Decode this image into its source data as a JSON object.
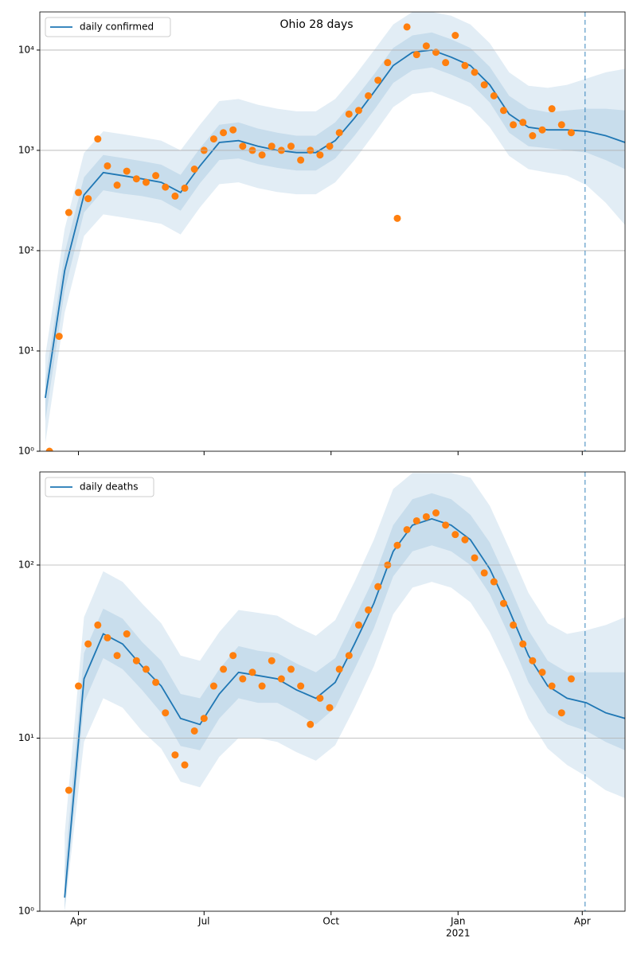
{
  "chart_data": [
    {
      "type": "line",
      "title": "Ohio 28 days",
      "log_scale": true,
      "grid": true,
      "legend": "upper left",
      "xlim": [
        "2020-03-04",
        "2021-05-02"
      ],
      "xticks": [
        "2020-04-01",
        "2020-07-01",
        "2020-10-01",
        "2021-01-01",
        "2021-04-01"
      ],
      "ylim": [
        1,
        24000
      ],
      "yticks": [
        {
          "value": 1,
          "label": "10⁰"
        },
        {
          "value": 10,
          "label": "10¹"
        },
        {
          "value": 100,
          "label": "10²"
        },
        {
          "value": 1000,
          "label": "10³"
        },
        {
          "value": 10000,
          "label": "10⁴"
        }
      ],
      "vline": {
        "x": "2021-04-03",
        "color": "#1f77b4"
      },
      "x": [
        "2020-03-08",
        "2020-03-22",
        "2020-04-05",
        "2020-04-19",
        "2020-05-03",
        "2020-05-17",
        "2020-05-31",
        "2020-06-14",
        "2020-06-28",
        "2020-07-12",
        "2020-07-26",
        "2020-08-09",
        "2020-08-23",
        "2020-09-06",
        "2020-09-20",
        "2020-10-04",
        "2020-10-18",
        "2020-11-01",
        "2020-11-15",
        "2020-11-29",
        "2020-12-13",
        "2020-12-27",
        "2021-01-10",
        "2021-01-24",
        "2021-02-07",
        "2021-02-21",
        "2021-03-07",
        "2021-03-21",
        "2021-04-04",
        "2021-04-18",
        "2021-05-02"
      ],
      "series": [
        {
          "name": "daily confirmed",
          "color": "#1f77b4",
          "values": [
            3.4,
            63,
            360,
            600,
            560,
            520,
            480,
            380,
            700,
            1200,
            1250,
            1100,
            1000,
            950,
            950,
            1250,
            2100,
            3800,
            7000,
            9500,
            10000,
            8500,
            7000,
            4500,
            2300,
            1700,
            1600,
            1600,
            1550,
            1400,
            1200
          ]
        }
      ],
      "bands": [
        {
          "color": "#1f77b4",
          "lower": [
            1.2,
            24,
            140,
            230,
            215,
            200,
            185,
            145,
            270,
            460,
            480,
            420,
            385,
            365,
            365,
            480,
            800,
            1450,
            2700,
            3650,
            3850,
            3250,
            2700,
            1700,
            880,
            650,
            600,
            560,
            450,
            300,
            180
          ],
          "upper": [
            9,
            165,
            940,
            1550,
            1450,
            1350,
            1250,
            1000,
            1800,
            3100,
            3250,
            2850,
            2600,
            2450,
            2450,
            3250,
            5500,
            9900,
            18000,
            24000,
            24000,
            22000,
            18000,
            11700,
            6000,
            4400,
            4200,
            4500,
            5200,
            6000,
            6500
          ]
        },
        {
          "color": "#1f77b4",
          "lower": [
            2,
            40,
            240,
            400,
            370,
            350,
            320,
            250,
            470,
            800,
            830,
            730,
            670,
            630,
            630,
            830,
            1400,
            2500,
            4700,
            6300,
            6700,
            5700,
            4700,
            3000,
            1500,
            1100,
            1050,
            1000,
            950,
            800,
            650
          ],
          "upper": [
            5,
            95,
            540,
            900,
            840,
            780,
            720,
            570,
            1050,
            1800,
            1900,
            1650,
            1500,
            1400,
            1400,
            1900,
            3200,
            5700,
            10500,
            14000,
            15000,
            12800,
            10500,
            6800,
            3500,
            2600,
            2400,
            2500,
            2600,
            2600,
            2500
          ]
        }
      ],
      "scatter": {
        "color": "#ff7f0e",
        "x": [
          "2020-03-11",
          "2020-03-18",
          "2020-03-25",
          "2020-04-01",
          "2020-04-08",
          "2020-04-15",
          "2020-04-22",
          "2020-04-29",
          "2020-05-06",
          "2020-05-13",
          "2020-05-20",
          "2020-05-27",
          "2020-06-03",
          "2020-06-10",
          "2020-06-17",
          "2020-06-24",
          "2020-07-01",
          "2020-07-08",
          "2020-07-15",
          "2020-07-22",
          "2020-07-29",
          "2020-08-05",
          "2020-08-12",
          "2020-08-19",
          "2020-08-26",
          "2020-09-02",
          "2020-09-09",
          "2020-09-16",
          "2020-09-23",
          "2020-09-30",
          "2020-10-07",
          "2020-10-14",
          "2020-10-21",
          "2020-10-28",
          "2020-11-04",
          "2020-11-11",
          "2020-11-18",
          "2020-11-25",
          "2020-12-02",
          "2020-12-09",
          "2020-12-16",
          "2020-12-23",
          "2020-12-30",
          "2021-01-06",
          "2021-01-13",
          "2021-01-20",
          "2021-01-27",
          "2021-02-03",
          "2021-02-10",
          "2021-02-17",
          "2021-02-24",
          "2021-03-03",
          "2021-03-10",
          "2021-03-17",
          "2021-03-24"
        ],
        "values": [
          1,
          14,
          240,
          380,
          330,
          1300,
          700,
          450,
          620,
          520,
          480,
          560,
          430,
          350,
          420,
          650,
          1000,
          1300,
          1500,
          1600,
          1100,
          1000,
          900,
          1100,
          1000,
          1100,
          800,
          1000,
          900,
          1100,
          1500,
          2300,
          2500,
          3500,
          5000,
          7500,
          210,
          17000,
          9000,
          11000,
          9500,
          7500,
          14000,
          7000,
          6000,
          4500,
          3500,
          2500,
          1800,
          1900,
          1400,
          1600,
          2600,
          1800,
          1500
        ]
      }
    },
    {
      "type": "line",
      "log_scale": true,
      "grid": true,
      "legend": "upper left",
      "xlim": [
        "2020-03-04",
        "2021-05-02"
      ],
      "xticks": [
        {
          "value": "2020-04-01",
          "label": "Apr"
        },
        {
          "value": "2020-07-01",
          "label": "Jul"
        },
        {
          "value": "2020-10-01",
          "label": "Oct"
        },
        {
          "value": "2021-01-01",
          "label": "Jan",
          "sublabel": "2021"
        },
        {
          "value": "2021-04-01",
          "label": "Apr"
        }
      ],
      "ylim": [
        1,
        345
      ],
      "yticks": [
        {
          "value": 1,
          "label": "10⁰"
        },
        {
          "value": 10,
          "label": "10¹"
        },
        {
          "value": 100,
          "label": "10²"
        }
      ],
      "vline": {
        "x": "2021-04-03",
        "color": "#1f77b4"
      },
      "x": [
        "2020-03-08",
        "2020-03-22",
        "2020-04-05",
        "2020-04-19",
        "2020-05-03",
        "2020-05-17",
        "2020-05-31",
        "2020-06-14",
        "2020-06-28",
        "2020-07-12",
        "2020-07-26",
        "2020-08-09",
        "2020-08-23",
        "2020-09-06",
        "2020-09-20",
        "2020-10-04",
        "2020-10-18",
        "2020-11-01",
        "2020-11-15",
        "2020-11-29",
        "2020-12-13",
        "2020-12-27",
        "2021-01-10",
        "2021-01-24",
        "2021-02-07",
        "2021-02-21",
        "2021-03-07",
        "2021-03-21",
        "2021-04-04",
        "2021-04-18",
        "2021-05-02"
      ],
      "series": [
        {
          "name": "daily deaths",
          "color": "#1f77b4",
          "values": [
            null,
            1.2,
            22,
            40,
            35,
            26,
            20,
            13,
            12,
            18,
            24,
            23,
            22,
            19,
            17,
            21,
            35,
            60,
            120,
            170,
            185,
            170,
            140,
            95,
            55,
            30,
            20,
            17,
            16,
            14,
            13
          ]
        }
      ],
      "bands": [
        {
          "color": "#1f77b4",
          "lower": [
            null,
            1,
            9.5,
            17,
            15,
            11,
            8.7,
            5.6,
            5.2,
            7.8,
            10,
            10,
            9.5,
            8.3,
            7.4,
            9.1,
            15,
            26,
            52,
            74,
            80,
            74,
            61,
            41,
            24,
            13,
            8.7,
            7,
            6,
            5,
            4.5
          ],
          "upper": [
            null,
            2.8,
            50,
            92,
            80,
            60,
            46,
            30,
            28,
            41,
            55,
            53,
            51,
            44,
            39,
            48,
            80,
            140,
            275,
            340,
            340,
            340,
            320,
            220,
            125,
            69,
            46,
            40,
            42,
            45,
            50
          ]
        },
        {
          "color": "#1f77b4",
          "lower": [
            null,
            1,
            16,
            29,
            25,
            19,
            14,
            9,
            8.5,
            13,
            17,
            16,
            16,
            14,
            12,
            15,
            25,
            43,
            86,
            120,
            130,
            120,
            100,
            68,
            39,
            21,
            14,
            12,
            11,
            9.5,
            8.5
          ],
          "upper": [
            null,
            1.7,
            31,
            56,
            49,
            36,
            28,
            18,
            17,
            25,
            34,
            32,
            31,
            27,
            24,
            29,
            49,
            84,
            170,
            240,
            260,
            240,
            195,
            135,
            77,
            42,
            28,
            24,
            24,
            24,
            24
          ]
        }
      ],
      "scatter": {
        "color": "#ff7f0e",
        "x": [
          "2020-03-11",
          "2020-03-18",
          "2020-03-25",
          "2020-04-01",
          "2020-04-08",
          "2020-04-15",
          "2020-04-22",
          "2020-04-29",
          "2020-05-06",
          "2020-05-13",
          "2020-05-20",
          "2020-05-27",
          "2020-06-03",
          "2020-06-10",
          "2020-06-17",
          "2020-06-24",
          "2020-07-01",
          "2020-07-08",
          "2020-07-15",
          "2020-07-22",
          "2020-07-29",
          "2020-08-05",
          "2020-08-12",
          "2020-08-19",
          "2020-08-26",
          "2020-09-02",
          "2020-09-09",
          "2020-09-16",
          "2020-09-23",
          "2020-09-30",
          "2020-10-07",
          "2020-10-14",
          "2020-10-21",
          "2020-10-28",
          "2020-11-04",
          "2020-11-11",
          "2020-11-18",
          "2020-11-25",
          "2020-12-02",
          "2020-12-09",
          "2020-12-16",
          "2020-12-23",
          "2020-12-30",
          "2021-01-06",
          "2021-01-13",
          "2021-01-20",
          "2021-01-27",
          "2021-02-03",
          "2021-02-10",
          "2021-02-17",
          "2021-02-24",
          "2021-03-03",
          "2021-03-10",
          "2021-03-17",
          "2021-03-24"
        ],
        "values": [
          null,
          null,
          5,
          20,
          35,
          45,
          38,
          30,
          40,
          28,
          25,
          21,
          14,
          8,
          7,
          11,
          13,
          20,
          25,
          30,
          22,
          24,
          20,
          28,
          22,
          25,
          20,
          12,
          17,
          15,
          25,
          30,
          45,
          55,
          75,
          100,
          130,
          160,
          180,
          190,
          200,
          170,
          150,
          140,
          110,
          90,
          80,
          60,
          45,
          35,
          28,
          24,
          20,
          14,
          22
        ]
      }
    }
  ]
}
